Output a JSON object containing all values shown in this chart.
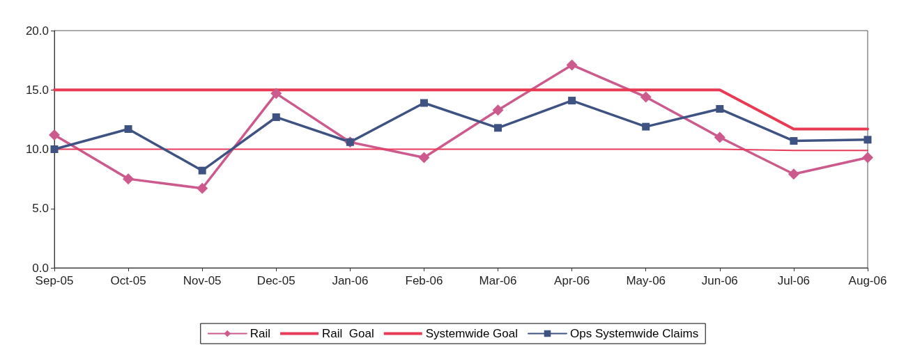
{
  "chart_data": {
    "type": "line",
    "categories": [
      "Sep-05",
      "Oct-05",
      "Nov-05",
      "Dec-05",
      "Jan-06",
      "Feb-06",
      "Mar-06",
      "Apr-06",
      "May-06",
      "Jun-06",
      "Jul-06",
      "Aug-06"
    ],
    "ylim": [
      0,
      20
    ],
    "yticks": [
      {
        "value": 0,
        "label": "0.0"
      },
      {
        "value": 5,
        "label": "5.0"
      },
      {
        "value": 10,
        "label": "10.0"
      },
      {
        "value": 15,
        "label": "15.0"
      },
      {
        "value": 20,
        "label": "20.0"
      }
    ],
    "grid": false,
    "legend": "bottom",
    "series": [
      {
        "name": "Rail",
        "color": "#cc5a8c",
        "marker": "diamond",
        "values": [
          11.2,
          7.5,
          6.7,
          14.7,
          10.6,
          9.3,
          13.3,
          17.1,
          14.4,
          11.0,
          7.9,
          9.3
        ]
      },
      {
        "name": "Rail  Goal",
        "color": "#e83a5a",
        "marker": "none",
        "values": [
          10.0,
          10.0,
          10.0,
          10.0,
          10.0,
          10.0,
          10.0,
          10.0,
          10.0,
          10.0,
          9.9,
          9.9
        ]
      },
      {
        "name": "Systemwide Goal",
        "color": "#e83a52",
        "marker": "none",
        "values": [
          15.0,
          15.0,
          15.0,
          15.0,
          15.0,
          15.0,
          15.0,
          15.0,
          15.0,
          15.0,
          11.7,
          11.7
        ]
      },
      {
        "name": "Ops Systemwide Claims",
        "color": "#3f5383",
        "marker": "square",
        "values": [
          10.0,
          11.7,
          8.2,
          12.7,
          10.6,
          13.9,
          11.8,
          14.1,
          11.9,
          13.4,
          10.7,
          10.8
        ]
      }
    ]
  }
}
